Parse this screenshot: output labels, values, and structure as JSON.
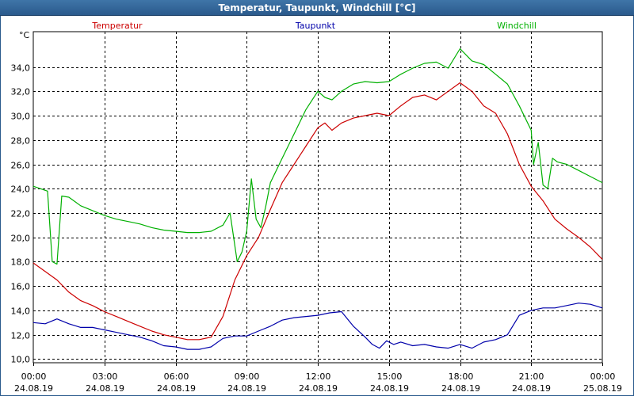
{
  "window": {
    "title": "Temperatur, Taupunkt, Windchill [°C]"
  },
  "chart_data": {
    "type": "line",
    "title": "Temperatur, Taupunkt, Windchill [°C]",
    "ylabel": "°C",
    "xlabel": "",
    "grid": true,
    "ylim": [
      9.7,
      36.9
    ],
    "xlim": [
      0,
      24
    ],
    "yticks": [
      10,
      12,
      14,
      16,
      18,
      20,
      22,
      24,
      26,
      28,
      30,
      32,
      34
    ],
    "ytick_labels": [
      "10,0",
      "12,0",
      "14,0",
      "16,0",
      "18,0",
      "20,0",
      "22,0",
      "24,0",
      "26,0",
      "28,0",
      "30,0",
      "32,0",
      "34,0"
    ],
    "xticks": [
      {
        "t": 0,
        "time": "00:00",
        "date": "24.08.19"
      },
      {
        "t": 3,
        "time": "03:00",
        "date": "24.08.19"
      },
      {
        "t": 6,
        "time": "06:00",
        "date": "24.08.19"
      },
      {
        "t": 9,
        "time": "09:00",
        "date": "24.08.19"
      },
      {
        "t": 12,
        "time": "12:00",
        "date": "24.08.19"
      },
      {
        "t": 15,
        "time": "15:00",
        "date": "24.08.19"
      },
      {
        "t": 18,
        "time": "18:00",
        "date": "24.08.19"
      },
      {
        "t": 21,
        "time": "21:00",
        "date": "24.08.19"
      },
      {
        "t": 24,
        "time": "00:00",
        "date": "25.08.19"
      }
    ],
    "series": [
      {
        "name": "Temperatur",
        "color": "#cc0000",
        "x": [
          0,
          0.5,
          1,
          1.5,
          2,
          2.5,
          3,
          3.5,
          4,
          4.5,
          5,
          5.5,
          6,
          6.5,
          7,
          7.5,
          8,
          8.5,
          9,
          9.5,
          10,
          10.5,
          11,
          11.5,
          12,
          12.3,
          12.6,
          13,
          13.5,
          14,
          14.5,
          15,
          15.5,
          16,
          16.5,
          17,
          17.5,
          18,
          18.5,
          19,
          19.5,
          20,
          20.5,
          21,
          21.5,
          22,
          22.5,
          23,
          23.5,
          24
        ],
        "values": [
          17.9,
          17.2,
          16.5,
          15.5,
          14.8,
          14.4,
          13.9,
          13.5,
          13.1,
          12.7,
          12.3,
          12.0,
          11.8,
          11.6,
          11.6,
          11.8,
          13.5,
          16.5,
          18.5,
          20.0,
          22.3,
          24.5,
          26.0,
          27.5,
          29.0,
          29.4,
          28.8,
          29.4,
          29.8,
          30.0,
          30.2,
          30.0,
          30.8,
          31.5,
          31.7,
          31.3,
          32.0,
          32.7,
          32.0,
          30.8,
          30.2,
          28.5,
          26.0,
          24.2,
          23.0,
          21.5,
          20.7,
          20.0,
          19.2,
          18.2
        ]
      },
      {
        "name": "Taupunkt",
        "color": "#0000aa",
        "x": [
          0,
          0.5,
          1,
          1.5,
          2,
          2.5,
          3,
          3.5,
          4,
          4.5,
          5,
          5.5,
          6,
          6.5,
          7,
          7.5,
          8,
          8.5,
          9,
          9.5,
          10,
          10.5,
          11,
          11.5,
          12,
          12.5,
          13,
          13.5,
          14,
          14.3,
          14.6,
          14.9,
          15.2,
          15.5,
          16,
          16.5,
          17,
          17.5,
          18,
          18.5,
          19,
          19.5,
          20,
          20.5,
          21,
          21.5,
          22,
          22.5,
          23,
          23.5,
          24
        ],
        "values": [
          13.0,
          12.9,
          13.3,
          12.9,
          12.6,
          12.6,
          12.4,
          12.2,
          12.0,
          11.8,
          11.5,
          11.1,
          11.0,
          10.8,
          10.8,
          11.0,
          11.7,
          11.9,
          11.9,
          12.3,
          12.7,
          13.2,
          13.4,
          13.5,
          13.6,
          13.8,
          13.9,
          12.7,
          11.8,
          11.2,
          10.9,
          11.5,
          11.2,
          11.4,
          11.1,
          11.2,
          11.0,
          10.9,
          11.2,
          10.9,
          11.4,
          11.6,
          12.0,
          13.6,
          14.0,
          14.2,
          14.2,
          14.4,
          14.6,
          14.5,
          14.2
        ]
      },
      {
        "name": "Windchill",
        "color": "#00b000",
        "x": [
          0,
          0.6,
          0.8,
          1.0,
          1.2,
          1.5,
          2,
          2.5,
          3,
          3.5,
          4,
          4.5,
          5,
          5.5,
          6,
          6.5,
          7,
          7.5,
          8,
          8.3,
          8.6,
          8.8,
          9,
          9.2,
          9.4,
          9.6,
          9.8,
          10,
          10.5,
          11,
          11.5,
          12,
          12.3,
          12.6,
          13,
          13.5,
          14,
          14.5,
          15,
          15.5,
          16,
          16.5,
          17,
          17.5,
          18,
          18.5,
          19,
          19.5,
          20,
          20.5,
          21,
          21.1,
          21.3,
          21.5,
          21.7,
          21.9,
          22.1,
          22.5,
          23,
          23.5,
          24
        ],
        "values": [
          24.2,
          23.8,
          18.0,
          17.8,
          23.4,
          23.3,
          22.6,
          22.2,
          21.8,
          21.5,
          21.3,
          21.1,
          20.8,
          20.6,
          20.5,
          20.4,
          20.4,
          20.5,
          21.0,
          22.0,
          18.0,
          18.8,
          20.5,
          24.8,
          21.5,
          20.8,
          22.5,
          24.5,
          26.5,
          28.5,
          30.5,
          32.0,
          31.5,
          31.3,
          32.0,
          32.6,
          32.8,
          32.7,
          32.8,
          33.4,
          33.9,
          34.3,
          34.4,
          33.9,
          35.5,
          34.5,
          34.2,
          33.4,
          32.6,
          30.8,
          28.8,
          26.0,
          27.8,
          24.3,
          24.0,
          26.5,
          26.2,
          26.0,
          25.5,
          25.0,
          24.5
        ]
      }
    ]
  }
}
